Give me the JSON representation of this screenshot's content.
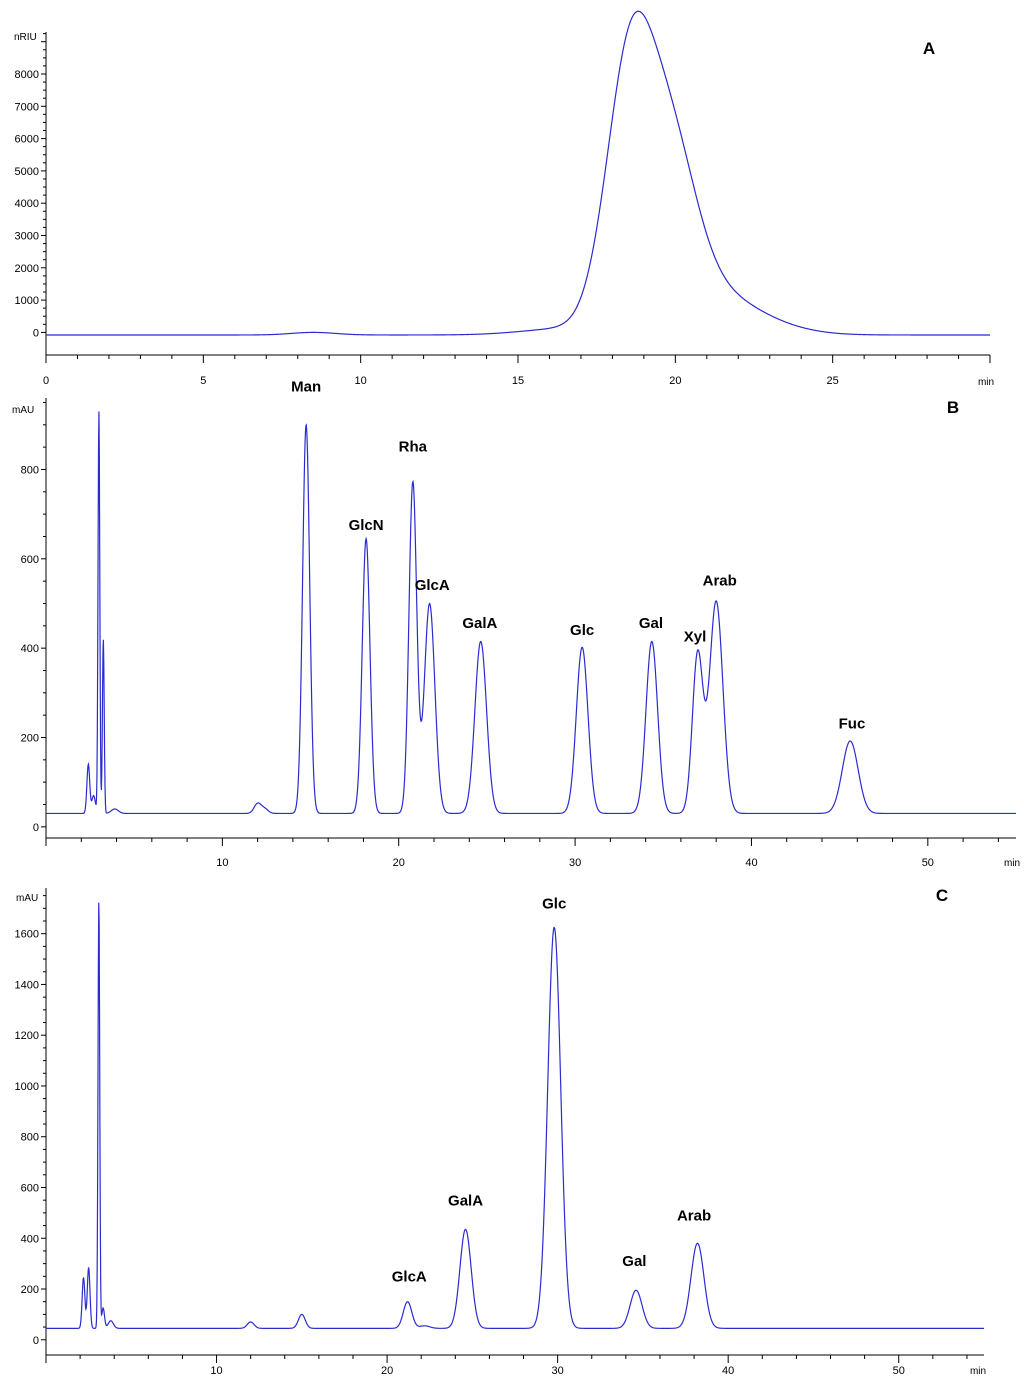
{
  "chart_data": [
    {
      "type": "line",
      "panel_label": "A",
      "ylabel": "nRIU",
      "xlabel": "min",
      "xlim": [
        0,
        30
      ],
      "ylim": [
        -700,
        9300
      ],
      "x_ticks": [
        0,
        5,
        10,
        15,
        20,
        25
      ],
      "y_ticks": [
        0,
        1000,
        2000,
        3000,
        4000,
        5000,
        6000,
        7000,
        8000
      ],
      "baseline": -80,
      "series": [
        {
          "color": "#2b2bd1",
          "peaks": [
            {
              "rt": 8.5,
              "height": 80,
              "width": 0.7
            },
            {
              "rt": 18.55,
              "height": 8050,
              "width": 0.75
            },
            {
              "rt": 19.85,
              "height": 4600,
              "width": 0.8
            },
            {
              "rt": 20.8,
              "height": 1300,
              "width": 1.3
            },
            {
              "rt": 22.6,
              "height": 320,
              "width": 1.3
            },
            {
              "rt": 16.6,
              "height": 200,
              "width": 1.4
            }
          ]
        }
      ],
      "annotations": []
    },
    {
      "type": "line",
      "panel_label": "B",
      "ylabel": "mAU",
      "xlabel": "min",
      "xlim": [
        0,
        55
      ],
      "ylim": [
        -25,
        960
      ],
      "x_ticks": [
        10,
        20,
        30,
        40,
        50
      ],
      "y_ticks": [
        0,
        200,
        400,
        600,
        800
      ],
      "baseline": 30,
      "series": [
        {
          "color": "#2b2bd1",
          "peaks": [
            {
              "rt": 2.4,
              "height": 110,
              "width": 0.08
            },
            {
              "rt": 2.7,
              "height": 40,
              "width": 0.1
            },
            {
              "rt": 3.0,
              "height": 900,
              "width": 0.05
            },
            {
              "rt": 3.25,
              "height": 390,
              "width": 0.05
            },
            {
              "rt": 3.9,
              "height": 10,
              "width": 0.2
            },
            {
              "rt": 12.0,
              "height": 22,
              "width": 0.2
            },
            {
              "rt": 12.4,
              "height": 10,
              "width": 0.2
            },
            {
              "rt": 14.75,
              "height": 870,
              "width": 0.2
            },
            {
              "rt": 18.15,
              "height": 615,
              "width": 0.22
            },
            {
              "rt": 20.8,
              "height": 740,
              "width": 0.22
            },
            {
              "rt": 21.75,
              "height": 470,
              "width": 0.3
            },
            {
              "rt": 24.65,
              "height": 385,
              "width": 0.33
            },
            {
              "rt": 30.4,
              "height": 372,
              "width": 0.33
            },
            {
              "rt": 34.35,
              "height": 385,
              "width": 0.33
            },
            {
              "rt": 36.95,
              "height": 355,
              "width": 0.3
            },
            {
              "rt": 38.0,
              "height": 475,
              "width": 0.38
            },
            {
              "rt": 45.6,
              "height": 162,
              "width": 0.45
            }
          ]
        }
      ],
      "annotations": [
        {
          "text": "Man",
          "x": 14.75,
          "y": 975
        },
        {
          "text": "GlcN",
          "x": 18.15,
          "y": 665
        },
        {
          "text": "Rha",
          "x": 20.8,
          "y": 840
        },
        {
          "text": "GlcA",
          "x": 21.9,
          "y": 530
        },
        {
          "text": "GalA",
          "x": 24.6,
          "y": 445
        },
        {
          "text": "Glc",
          "x": 30.4,
          "y": 430
        },
        {
          "text": "Gal",
          "x": 34.3,
          "y": 445
        },
        {
          "text": "Xyl",
          "x": 36.8,
          "y": 415
        },
        {
          "text": "Arab",
          "x": 38.2,
          "y": 540
        },
        {
          "text": "Fuc",
          "x": 45.7,
          "y": 220
        }
      ]
    },
    {
      "type": "line",
      "panel_label": "C",
      "ylabel": "mAU",
      "xlabel": "min",
      "xlim": [
        0,
        55
      ],
      "ylim": [
        -60,
        1780
      ],
      "x_ticks": [
        10,
        20,
        30,
        40,
        50
      ],
      "y_ticks": [
        0,
        200,
        400,
        600,
        800,
        1000,
        1200,
        1400,
        1600
      ],
      "baseline": 45,
      "series": [
        {
          "color": "#2b2bd1",
          "peaks": [
            {
              "rt": 2.2,
              "height": 200,
              "width": 0.08
            },
            {
              "rt": 2.5,
              "height": 240,
              "width": 0.08
            },
            {
              "rt": 3.1,
              "height": 1690,
              "width": 0.05
            },
            {
              "rt": 3.35,
              "height": 80,
              "width": 0.08
            },
            {
              "rt": 3.8,
              "height": 30,
              "width": 0.15
            },
            {
              "rt": 12.0,
              "height": 25,
              "width": 0.2
            },
            {
              "rt": 15.0,
              "height": 55,
              "width": 0.2
            },
            {
              "rt": 21.2,
              "height": 105,
              "width": 0.25
            },
            {
              "rt": 22.2,
              "height": 10,
              "width": 0.3
            },
            {
              "rt": 24.6,
              "height": 390,
              "width": 0.33
            },
            {
              "rt": 29.8,
              "height": 1580,
              "width": 0.38
            },
            {
              "rt": 34.6,
              "height": 150,
              "width": 0.35
            },
            {
              "rt": 38.2,
              "height": 335,
              "width": 0.38
            }
          ]
        }
      ],
      "annotations": [
        {
          "text": "Glc",
          "x": 29.8,
          "y": 1700
        },
        {
          "text": "GalA",
          "x": 24.6,
          "y": 530
        },
        {
          "text": "GlcA",
          "x": 21.3,
          "y": 230
        },
        {
          "text": "Gal",
          "x": 34.5,
          "y": 290
        },
        {
          "text": "Arab",
          "x": 38.0,
          "y": 470
        }
      ]
    }
  ]
}
